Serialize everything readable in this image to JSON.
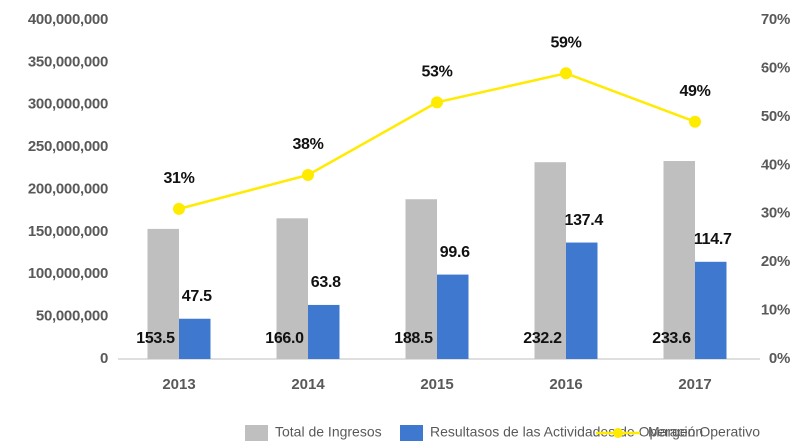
{
  "chart_data": {
    "type": "bar",
    "categories": [
      "2013",
      "2014",
      "2015",
      "2016",
      "2017"
    ],
    "series": [
      {
        "name": "Total de Ingresos",
        "color": "#bfbfbf",
        "values": [
          153500000,
          166000000,
          188500000,
          232200000,
          233600000
        ],
        "value_labels": [
          "153.5",
          "166.0",
          "188.5",
          "232.2",
          "233.6"
        ]
      },
      {
        "name": "Resultasos de las Actividades de Operación",
        "color": "#3f78cf",
        "values": [
          47500000,
          63800000,
          99600000,
          137400000,
          114700000
        ],
        "value_labels": [
          "47.5",
          "63.8",
          "99.6",
          "137.4",
          "114.7"
        ]
      },
      {
        "name": "Margen Operativo",
        "color": "#ffeb00",
        "type": "line",
        "axis": "y2",
        "values": [
          31,
          38,
          53,
          59,
          49
        ],
        "value_labels": [
          "31%",
          "38%",
          "53%",
          "59%",
          "49%"
        ]
      }
    ],
    "ylim": [
      0,
      400000000
    ],
    "yticks": [
      0,
      {
        "value": 50000000,
        "label": "50,000,000"
      },
      {
        "value": 100000000,
        "label": "100,000,000"
      },
      {
        "value": 150000000,
        "label": "150,000,000"
      },
      {
        "value": 200000000,
        "label": "200,000,000"
      },
      {
        "value": 250000000,
        "label": "250,000,000"
      },
      {
        "value": 300000000,
        "label": "300,000,000"
      },
      {
        "value": 350000000,
        "label": "350,000,000"
      },
      {
        "value": 400000000,
        "label": "400,000,000"
      }
    ],
    "y2lim": [
      0,
      70
    ],
    "y2ticks": [
      {
        "value": 0,
        "label": "0%"
      },
      {
        "value": 10,
        "label": "10%"
      },
      {
        "value": 20,
        "label": "20%"
      },
      {
        "value": 30,
        "label": "30%"
      },
      {
        "value": 40,
        "label": "40%"
      },
      {
        "value": 50,
        "label": "50%"
      },
      {
        "value": 60,
        "label": "60%"
      },
      {
        "value": 70,
        "label": "70%"
      }
    ],
    "grid": false,
    "legend": "bottom"
  }
}
